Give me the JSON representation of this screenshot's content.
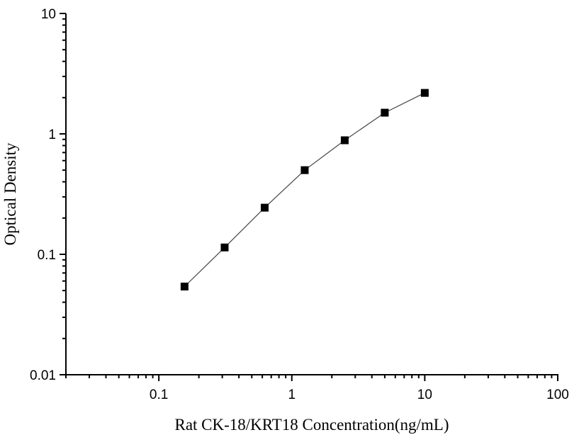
{
  "chart_data": {
    "type": "line",
    "title": "",
    "xlabel": "Rat CK-18/KRT18 Concentration(ng/mL)",
    "ylabel": "Optical Density",
    "x_scale": "log",
    "y_scale": "log",
    "xlim": [
      0.02,
      100
    ],
    "ylim": [
      0.01,
      10
    ],
    "x_ticks": [
      0.1,
      1,
      10,
      100
    ],
    "x_tick_labels": [
      "0.1",
      "1",
      "10",
      "100"
    ],
    "y_ticks": [
      0.01,
      0.1,
      1,
      10
    ],
    "y_tick_labels": [
      "0.01",
      "0.1",
      "1",
      "10"
    ],
    "grid": false,
    "marker": "square",
    "color": "#000000",
    "series": [
      {
        "x": [
          0.156,
          0.3125,
          0.625,
          1.25,
          2.5,
          5,
          10
        ],
        "y": [
          0.054,
          0.114,
          0.244,
          0.5,
          0.885,
          1.5,
          2.19
        ]
      }
    ]
  }
}
